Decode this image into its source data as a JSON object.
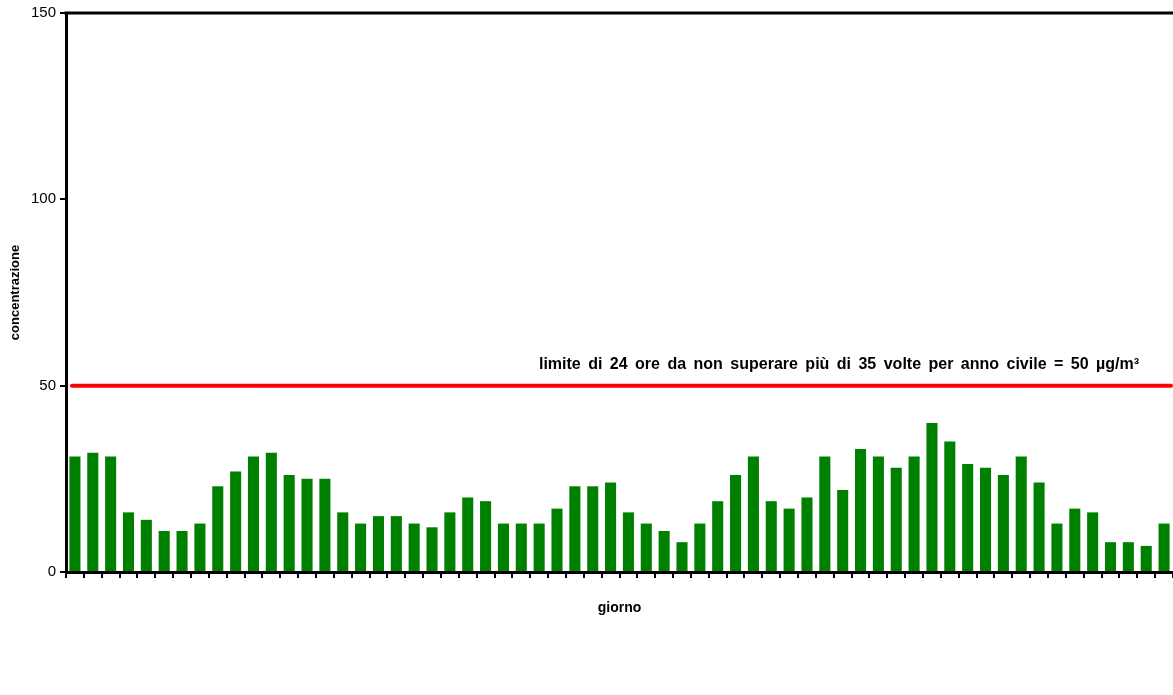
{
  "chart_data": {
    "type": "bar",
    "xlabel": "giorno",
    "ylabel": "concentrazione",
    "categories": [
      null,
      null,
      null,
      null,
      null,
      null,
      null,
      null,
      null,
      null,
      null,
      null,
      null,
      null,
      null,
      null,
      null,
      null,
      null,
      null,
      null,
      null,
      null,
      null,
      null,
      null,
      null,
      null,
      null,
      null,
      null,
      null,
      null,
      null,
      null,
      null,
      null,
      null,
      null,
      null,
      null,
      null,
      null,
      null,
      null,
      null,
      null,
      null,
      null,
      null,
      null,
      null,
      null,
      null,
      null,
      null,
      null,
      null,
      null,
      null,
      null,
      null
    ],
    "values": [
      31,
      32,
      31,
      16,
      14,
      11,
      11,
      13,
      23,
      27,
      31,
      32,
      26,
      25,
      25,
      16,
      13,
      15,
      15,
      13,
      12,
      16,
      20,
      19,
      13,
      13,
      13,
      17,
      23,
      23,
      24,
      16,
      13,
      11,
      8,
      13,
      19,
      26,
      31,
      19,
      17,
      20,
      31,
      22,
      33,
      31,
      28,
      31,
      40,
      35,
      29,
      28,
      26,
      31,
      24,
      13,
      17,
      16,
      8,
      8,
      7,
      13
    ],
    "color": "#008000",
    "ylim": [
      0,
      150
    ],
    "yticks": [
      0,
      50,
      100,
      150
    ],
    "tick_labels": "y",
    "ref_lines": [
      {
        "axis": "y",
        "value": 50,
        "label": "limite di 24 ore da non superare più di 35 volte per anno civile = 50 µg/m³",
        "color": "#ff0000"
      }
    ]
  }
}
